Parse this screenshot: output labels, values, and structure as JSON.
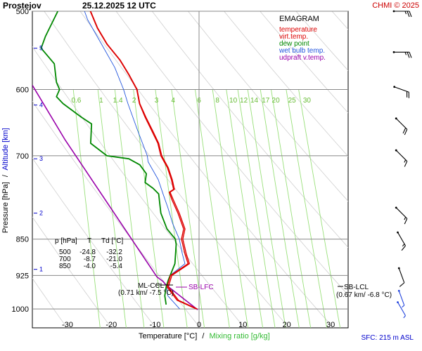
{
  "header": {
    "station": "Prostejov",
    "datetime": "25.12.2025 12 UTC",
    "credit": "CHMI © 2025"
  },
  "legend": {
    "title": "EMAGRAM",
    "entries": [
      {
        "label": "temperature",
        "color": "#dd0000"
      },
      {
        "label": "virt.temp.",
        "color": "#dd0000"
      },
      {
        "label": "dew point",
        "color": "#008800"
      },
      {
        "label": "wet bulb temp.",
        "color": "#2255dd"
      },
      {
        "label": "udpraft v.temp.",
        "color": "#9900aa"
      }
    ]
  },
  "axes": {
    "ylabel_left": "Pressure [hPa]",
    "ylabel_sep": "/",
    "ylabel_right": "Altitude [km]",
    "xlabel_left": "Temperature [°C]",
    "xlabel_sep": "/",
    "xlabel_right": "Mixing ratio [g/kg]",
    "sfc_note": "SFC: 215 m ASL"
  },
  "table": {
    "header": [
      "p [hPa]",
      "T",
      "Td [°C]"
    ],
    "rows": [
      [
        "500",
        "-24.8",
        "-32.2"
      ],
      [
        "700",
        "-8.7",
        "-21.0"
      ],
      [
        "850",
        "-4.0",
        "-5.4"
      ]
    ]
  },
  "annotations": {
    "ml_ccl": "ML-CCL",
    "ml_ccl_val": "(0.71 km/ -7.5 °C)",
    "sb_lfc": "SB-LFC",
    "sb_lcl": "SB-LCL",
    "sb_lcl_val": "(0.67 km/ -6.8 °C)"
  },
  "chart_data": {
    "type": "line",
    "title": "EMAGRAM",
    "x_range": [
      -38,
      34
    ],
    "p_range": [
      500,
      1045
    ],
    "x_ticks": [
      -30,
      -20,
      -10,
      0,
      10,
      20,
      30
    ],
    "p_ticks": [
      500,
      600,
      700,
      850,
      925,
      1000
    ],
    "altitude_km_ticks": [
      {
        "label": "1",
        "p": 912
      },
      {
        "label": "2",
        "p": 800
      },
      {
        "label": "3",
        "p": 705
      },
      {
        "label": "4",
        "p": 622
      },
      {
        "label": "5",
        "p": 545
      }
    ],
    "mixing_ratio_labels": [
      "0.6",
      "1",
      "1.4",
      "2",
      "3",
      "4",
      "6",
      "8",
      "10",
      "12",
      "14",
      "17",
      "20",
      "25",
      "30"
    ],
    "mixing_ratio_label_t": [
      -28,
      -22.3,
      -18.5,
      -14.8,
      -9.7,
      -5.9,
      0,
      4.2,
      7.8,
      10.2,
      12.6,
      15.2,
      17.5,
      21.2,
      24.6
    ],
    "series": [
      {
        "name": "temperature",
        "color": "#dd0000",
        "points": [
          [
            -0.6,
            1000
          ],
          [
            -5,
            980
          ],
          [
            -7.3,
            950
          ],
          [
            -6.5,
            925
          ],
          [
            -2.5,
            900
          ],
          [
            -3.2,
            880
          ],
          [
            -4.0,
            850
          ],
          [
            -3.5,
            830
          ],
          [
            -4.8,
            800
          ],
          [
            -6.2,
            775
          ],
          [
            -6.8,
            762
          ],
          [
            -5.8,
            757
          ],
          [
            -6.3,
            740
          ],
          [
            -7.2,
            720
          ],
          [
            -8.7,
            700
          ],
          [
            -9.4,
            680
          ],
          [
            -10.8,
            660
          ],
          [
            -12.3,
            640
          ],
          [
            -13.6,
            620
          ],
          [
            -14.2,
            600
          ],
          [
            -16,
            580
          ],
          [
            -18.1,
            560
          ],
          [
            -21,
            540
          ],
          [
            -23.2,
            520
          ],
          [
            -24.8,
            500
          ]
        ]
      },
      {
        "name": "virt.temp.",
        "color": "#dd0000",
        "points": [
          [
            -0.4,
            1000
          ],
          [
            -4.7,
            980
          ],
          [
            -7.0,
            950
          ],
          [
            -6.2,
            925
          ],
          [
            -2.2,
            900
          ],
          [
            -2.9,
            880
          ],
          [
            -3.7,
            850
          ],
          [
            -3.2,
            830
          ],
          [
            -4.5,
            800
          ],
          [
            -5.9,
            775
          ],
          [
            -6.6,
            762
          ],
          [
            -5.6,
            757
          ],
          [
            -6.1,
            740
          ],
          [
            -7.0,
            720
          ],
          [
            -8.5,
            700
          ],
          [
            -9.2,
            680
          ],
          [
            -10.6,
            660
          ],
          [
            -12.1,
            640
          ],
          [
            -13.5,
            620
          ],
          [
            -14.1,
            600
          ],
          [
            -15.9,
            580
          ],
          [
            -18.0,
            560
          ],
          [
            -20.9,
            540
          ],
          [
            -23.1,
            520
          ],
          [
            -24.7,
            500
          ]
        ]
      },
      {
        "name": "dew point",
        "color": "#008800",
        "points": [
          [
            -7.5,
            990
          ],
          [
            -7.8,
            970
          ],
          [
            -7.5,
            950
          ],
          [
            -7.0,
            935
          ],
          [
            -5.5,
            900
          ],
          [
            -5.2,
            860
          ],
          [
            -5.4,
            850
          ],
          [
            -7.3,
            830
          ],
          [
            -8.7,
            800
          ],
          [
            -9.2,
            765
          ],
          [
            -10.5,
            755
          ],
          [
            -12.3,
            745
          ],
          [
            -12.0,
            730
          ],
          [
            -13.5,
            715
          ],
          [
            -16,
            705
          ],
          [
            -21.0,
            700
          ],
          [
            -24.7,
            680
          ],
          [
            -24.5,
            650
          ],
          [
            -26.8,
            640
          ],
          [
            -31,
            620
          ],
          [
            -32.5,
            610
          ],
          [
            -31.8,
            600
          ],
          [
            -32.5,
            590
          ],
          [
            -33,
            565
          ],
          [
            -36,
            545
          ],
          [
            -35,
            530
          ],
          [
            -32.2,
            500
          ]
        ]
      },
      {
        "name": "wet bulb temp.",
        "color": "#2255dd",
        "points": [
          [
            -4.4,
            1000
          ],
          [
            -7.1,
            970
          ],
          [
            -7.4,
            950
          ],
          [
            -6.6,
            925
          ],
          [
            -3.2,
            900
          ],
          [
            -3.8,
            880
          ],
          [
            -4.5,
            850
          ],
          [
            -6,
            820
          ],
          [
            -7.1,
            790
          ],
          [
            -8.2,
            765
          ],
          [
            -9.3,
            740
          ],
          [
            -11.6,
            710
          ],
          [
            -11.8,
            700
          ],
          [
            -14.0,
            660
          ],
          [
            -16.2,
            620
          ],
          [
            -17.2,
            600
          ],
          [
            -19.2,
            570
          ],
          [
            -22.2,
            540
          ],
          [
            -25.4,
            510
          ],
          [
            -26.1,
            500
          ]
        ]
      },
      {
        "name": "udpraft v.temp.",
        "color": "#9900aa",
        "points": [
          [
            -0.3,
            1002
          ],
          [
            -3.7,
            975
          ],
          [
            -7.6,
            945
          ],
          [
            -8.2,
            938
          ],
          [
            -9.6,
            928
          ],
          [
            -30.5,
            675
          ],
          [
            -38,
            594
          ]
        ]
      }
    ],
    "wind_barbs": [
      {
        "p": 500,
        "dir": 270,
        "kt": 25
      },
      {
        "p": 550,
        "dir": 270,
        "kt": 25
      },
      {
        "p": 600,
        "dir": 290,
        "kt": 20
      },
      {
        "p": 650,
        "dir": 315,
        "kt": 20
      },
      {
        "p": 700,
        "dir": 315,
        "kt": 15
      },
      {
        "p": 800,
        "dir": 315,
        "kt": 15
      },
      {
        "p": 850,
        "dir": 330,
        "kt": 15
      },
      {
        "p": 925,
        "dir": 340,
        "kt": 10
      },
      {
        "p": 975,
        "dir": 340,
        "kt": 5
      },
      {
        "p": 1000,
        "dir": 330,
        "kt": 5
      }
    ]
  }
}
